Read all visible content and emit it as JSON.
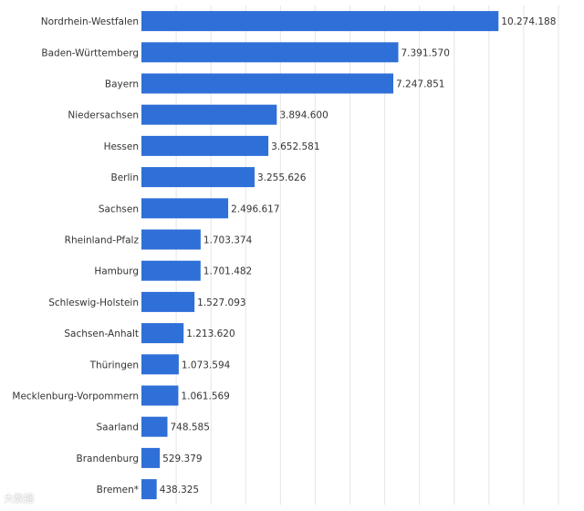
{
  "chart_data": {
    "type": "bar",
    "orientation": "horizontal",
    "title": "",
    "xlabel": "",
    "ylabel": "",
    "grid": true,
    "xlim": [
      0,
      12000000
    ],
    "categories": [
      "Nordrhein-Westfalen",
      "Baden-Württemberg",
      "Bayern",
      "Niedersachsen",
      "Hessen",
      "Berlin",
      "Sachsen",
      "Rheinland-Pfalz",
      "Hamburg",
      "Schleswig-Holstein",
      "Sachsen-Anhalt",
      "Thüringen",
      "Mecklenburg-Vorpommern",
      "Saarland",
      "Brandenburg",
      "Bremen*"
    ],
    "values": [
      10274188,
      7391570,
      7247851,
      3894600,
      3652581,
      3255626,
      2496617,
      1703374,
      1701482,
      1527093,
      1213620,
      1073594,
      1061569,
      748585,
      529379,
      438325
    ],
    "value_labels": [
      "10.274.188",
      "7.391.570",
      "7.247.851",
      "3.894.600",
      "3.652.581",
      "3.255.626",
      "2.496.617",
      "1.703.374",
      "1.701.482",
      "1.527.093",
      "1.213.620",
      "1.073.594",
      "1.061.569",
      "748.585",
      "529.379",
      "438.325"
    ],
    "bar_color": "#2f6fd8"
  },
  "watermark": "大数据"
}
